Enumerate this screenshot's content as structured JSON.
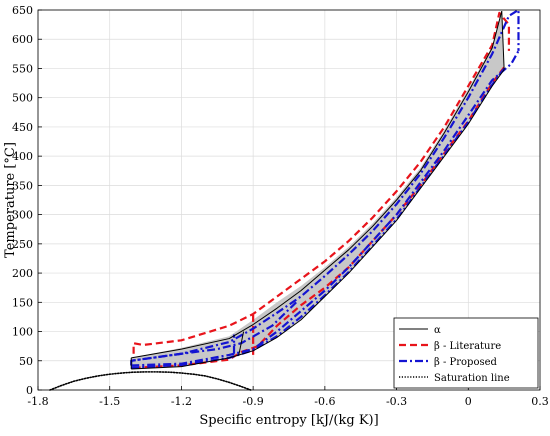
{
  "chart_data": {
    "type": "line",
    "xlabel": "Specific entropy [kJ/(kg K)]",
    "ylabel": "Temperature [°C]",
    "xlim": [
      -1.8,
      0.3
    ],
    "ylim": [
      0,
      650
    ],
    "x_ticks": [
      -1.8,
      -1.5,
      -1.2,
      -0.9,
      -0.6,
      -0.3,
      0,
      0.3
    ],
    "x_tick_labels": [
      "-1.8",
      "-1.5",
      "-1.2",
      "-0.9",
      "-0.6",
      "-0.3",
      "0",
      "0.3"
    ],
    "y_ticks": [
      0,
      50,
      100,
      150,
      200,
      250,
      300,
      350,
      400,
      450,
      500,
      550,
      600,
      650
    ],
    "y_tick_labels": [
      "0",
      "50",
      "100",
      "150",
      "200",
      "250",
      "300",
      "350",
      "400",
      "450",
      "500",
      "550",
      "600",
      "650"
    ],
    "grid": true,
    "legend_position": "bottom-right",
    "fill_color": "#c8c8c8",
    "series": [
      {
        "name": "α",
        "style": "solid",
        "color": "#000000",
        "segments": [
          [
            [
              -1.41,
              55
            ],
            [
              -1.2,
              70
            ],
            [
              -1.0,
              88
            ],
            [
              -0.9,
              112
            ],
            [
              -0.8,
              140
            ],
            [
              -0.7,
              170
            ],
            [
              -0.6,
              205
            ],
            [
              -0.5,
              240
            ],
            [
              -0.4,
              280
            ],
            [
              -0.3,
              325
            ],
            [
              -0.2,
              375
            ],
            [
              -0.1,
              440
            ],
            [
              0.0,
              510
            ],
            [
              0.1,
              585
            ],
            [
              0.14,
              648
            ]
          ],
          [
            [
              -1.41,
              36
            ],
            [
              -1.2,
              40
            ],
            [
              -1.0,
              55
            ],
            [
              -0.9,
              67
            ],
            [
              -0.8,
              90
            ],
            [
              -0.7,
              120
            ],
            [
              -0.6,
              160
            ],
            [
              -0.5,
              200
            ],
            [
              -0.4,
              245
            ],
            [
              -0.3,
              290
            ],
            [
              -0.2,
              345
            ],
            [
              -0.1,
              400
            ],
            [
              0.0,
              455
            ],
            [
              0.1,
              520
            ],
            [
              0.15,
              548
            ]
          ],
          [
            [
              -1.41,
              55
            ],
            [
              -1.41,
              36
            ]
          ],
          [
            [
              0.14,
              648
            ],
            [
              0.15,
              548
            ]
          ],
          [
            [
              -0.94,
              100
            ],
            [
              -0.96,
              60
            ]
          ]
        ]
      },
      {
        "name": "β - Literature",
        "style": "dashed",
        "color": "#e8141b",
        "segments": [
          [
            [
              -1.4,
              62
            ],
            [
              -1.4,
              80
            ],
            [
              -1.36,
              77
            ],
            [
              -1.2,
              85
            ],
            [
              -1.0,
              110
            ],
            [
              -0.9,
              130
            ],
            [
              -0.8,
              160
            ],
            [
              -0.7,
              190
            ],
            [
              -0.6,
              220
            ],
            [
              -0.5,
              255
            ],
            [
              -0.4,
              295
            ],
            [
              -0.3,
              340
            ],
            [
              -0.2,
              390
            ],
            [
              -0.1,
              450
            ],
            [
              0.0,
              520
            ],
            [
              0.1,
              590
            ],
            [
              0.13,
              645
            ],
            [
              0.17,
              625
            ],
            [
              0.17,
              580
            ]
          ],
          [
            [
              -1.4,
              38
            ],
            [
              -1.2,
              42
            ],
            [
              -1.0,
              52
            ],
            [
              -0.95,
              65
            ],
            [
              -0.88,
              75
            ],
            [
              -0.8,
              110
            ],
            [
              -0.7,
              145
            ],
            [
              -0.6,
              175
            ],
            [
              -0.5,
              210
            ],
            [
              -0.4,
              255
            ],
            [
              -0.3,
              300
            ],
            [
              -0.2,
              350
            ],
            [
              -0.1,
              405
            ],
            [
              0.0,
              460
            ],
            [
              0.1,
              525
            ],
            [
              0.15,
              552
            ]
          ],
          [
            [
              -0.9,
              60
            ],
            [
              -0.9,
              130
            ]
          ]
        ]
      },
      {
        "name": "β - Proposed",
        "style": "dashdot",
        "color": "#1414d2",
        "segments": [
          [
            [
              -1.41,
              42
            ],
            [
              -1.41,
              50
            ],
            [
              -1.2,
              62
            ],
            [
              -1.0,
              82
            ],
            [
              -0.9,
              105
            ],
            [
              -0.8,
              132
            ],
            [
              -0.7,
              160
            ],
            [
              -0.6,
              195
            ],
            [
              -0.5,
              232
            ],
            [
              -0.4,
              272
            ],
            [
              -0.3,
              318
            ],
            [
              -0.2,
              370
            ],
            [
              -0.1,
              432
            ],
            [
              0.0,
              500
            ],
            [
              0.1,
              575
            ],
            [
              0.17,
              640
            ],
            [
              0.21,
              650
            ],
            [
              0.21,
              580
            ]
          ],
          [
            [
              -1.41,
              42
            ],
            [
              -1.2,
              45
            ],
            [
              -1.0,
              60
            ],
            [
              -0.9,
              70
            ],
            [
              -0.8,
              100
            ],
            [
              -0.7,
              135
            ],
            [
              -0.6,
              170
            ],
            [
              -0.5,
              210
            ],
            [
              -0.4,
              255
            ],
            [
              -0.3,
              300
            ],
            [
              -0.2,
              355
            ],
            [
              -0.1,
              410
            ],
            [
              0.0,
              470
            ],
            [
              0.1,
              530
            ],
            [
              0.18,
              558
            ],
            [
              0.21,
              580
            ]
          ],
          [
            [
              -1.41,
              38
            ],
            [
              -1.2,
              43
            ],
            [
              -1.0,
              55
            ],
            [
              -0.9,
              68
            ],
            [
              -0.8,
              92
            ],
            [
              -0.7,
              125
            ],
            [
              -0.6,
              162
            ],
            [
              -0.5,
              202
            ],
            [
              -0.4,
              247
            ],
            [
              -0.3,
              292
            ],
            [
              -0.2,
              347
            ],
            [
              -0.1,
              402
            ],
            [
              0.0,
              458
            ],
            [
              0.1,
              522
            ],
            [
              0.15,
              550
            ]
          ],
          [
            [
              -0.98,
              62
            ],
            [
              -0.98,
              95
            ]
          ],
          [
            [
              -0.72,
              150
            ],
            [
              -0.82,
              110
            ],
            [
              -0.95,
              80
            ],
            [
              -1.05,
              70
            ],
            [
              -1.2,
              62
            ],
            [
              -1.41,
              50
            ]
          ]
        ]
      },
      {
        "name": "Saturation line",
        "style": "dotted",
        "color": "#000000",
        "segments": [
          [
            [
              -1.75,
              0
            ],
            [
              -1.7,
              8
            ],
            [
              -1.65,
              15
            ],
            [
              -1.6,
              20
            ],
            [
              -1.55,
              24
            ],
            [
              -1.5,
              27
            ],
            [
              -1.45,
              29
            ],
            [
              -1.4,
              30.5
            ],
            [
              -1.35,
              31
            ],
            [
              -1.3,
              31
            ],
            [
              -1.25,
              30.5
            ],
            [
              -1.2,
              29
            ],
            [
              -1.15,
              27
            ],
            [
              -1.1,
              24
            ],
            [
              -1.05,
              19
            ],
            [
              -1.0,
              13
            ],
            [
              -0.95,
              6
            ],
            [
              -0.91,
              0
            ]
          ]
        ]
      }
    ],
    "fill_region": [
      [
        -1.41,
        55
      ],
      [
        -1.2,
        72
      ],
      [
        -1.0,
        92
      ],
      [
        -0.9,
        120
      ],
      [
        -0.8,
        150
      ],
      [
        -0.7,
        178
      ],
      [
        -0.6,
        210
      ],
      [
        -0.5,
        245
      ],
      [
        -0.4,
        285
      ],
      [
        -0.3,
        330
      ],
      [
        -0.2,
        380
      ],
      [
        -0.1,
        445
      ],
      [
        0.0,
        515
      ],
      [
        0.1,
        588
      ],
      [
        0.14,
        648
      ],
      [
        0.15,
        548
      ],
      [
        0.1,
        520
      ],
      [
        0.0,
        455
      ],
      [
        -0.1,
        400
      ],
      [
        -0.2,
        345
      ],
      [
        -0.3,
        290
      ],
      [
        -0.4,
        245
      ],
      [
        -0.5,
        200
      ],
      [
        -0.6,
        160
      ],
      [
        -0.7,
        120
      ],
      [
        -0.8,
        90
      ],
      [
        -0.9,
        67
      ],
      [
        -1.0,
        55
      ],
      [
        -1.2,
        40
      ],
      [
        -1.41,
        36
      ]
    ],
    "legend": [
      {
        "label": "α",
        "style": "solid",
        "color": "#000000"
      },
      {
        "label": "β - Literature",
        "style": "dashed",
        "color": "#e8141b"
      },
      {
        "label": "β - Proposed",
        "style": "dashdot",
        "color": "#1414d2"
      },
      {
        "label": "Saturation line",
        "style": "dotted",
        "color": "#000000"
      }
    ]
  }
}
